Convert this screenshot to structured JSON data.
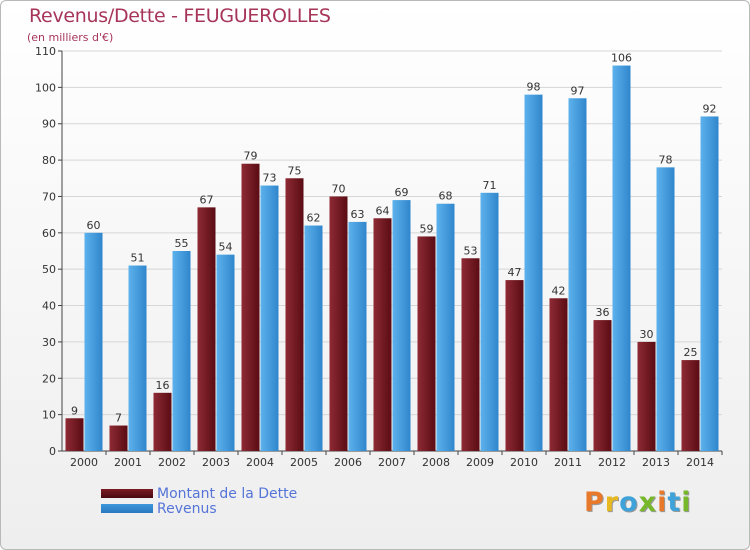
{
  "title": "Revenus/Dette - FEUGUEROLLES",
  "subtitle": "(en milliers d'€)",
  "colors": {
    "dette": "#7b1a24",
    "revenus": "#3d97da",
    "title": "#a7355a",
    "legend_text": "#5574d8"
  },
  "chart_data": {
    "type": "bar",
    "title": "Revenus/Dette - FEUGUEROLLES",
    "ylabel": "(en milliers d'€)",
    "ylim": [
      0,
      110
    ],
    "yticks": [
      0,
      10,
      20,
      30,
      40,
      50,
      60,
      70,
      80,
      90,
      100,
      110
    ],
    "grid": true,
    "legend": "bottom-left",
    "categories": [
      "2000",
      "2001",
      "2002",
      "2003",
      "2004",
      "2005",
      "2006",
      "2007",
      "2008",
      "2009",
      "2010",
      "2011",
      "2012",
      "2013",
      "2014"
    ],
    "series": [
      {
        "name": "Montant de la Dette",
        "color": "#7b1a24",
        "values": [
          9,
          7,
          16,
          67,
          79,
          75,
          70,
          64,
          59,
          53,
          47,
          42,
          36,
          30,
          25
        ]
      },
      {
        "name": "Revenus",
        "color": "#3d97da",
        "values": [
          60,
          51,
          55,
          54,
          73,
          62,
          63,
          69,
          68,
          71,
          98,
          97,
          106,
          78,
          92
        ]
      }
    ]
  },
  "legend": {
    "items": [
      {
        "label": "Montant de la Dette"
      },
      {
        "label": "Revenus"
      }
    ]
  },
  "logo": {
    "letters": [
      "P",
      "r",
      "o",
      "x",
      "i",
      "t",
      "i"
    ],
    "colors": [
      "#e8792b",
      "#e8b820",
      "#3fa2d8",
      "#76b82a",
      "#e8792b",
      "#3fa2d8",
      "#76b82a"
    ]
  }
}
